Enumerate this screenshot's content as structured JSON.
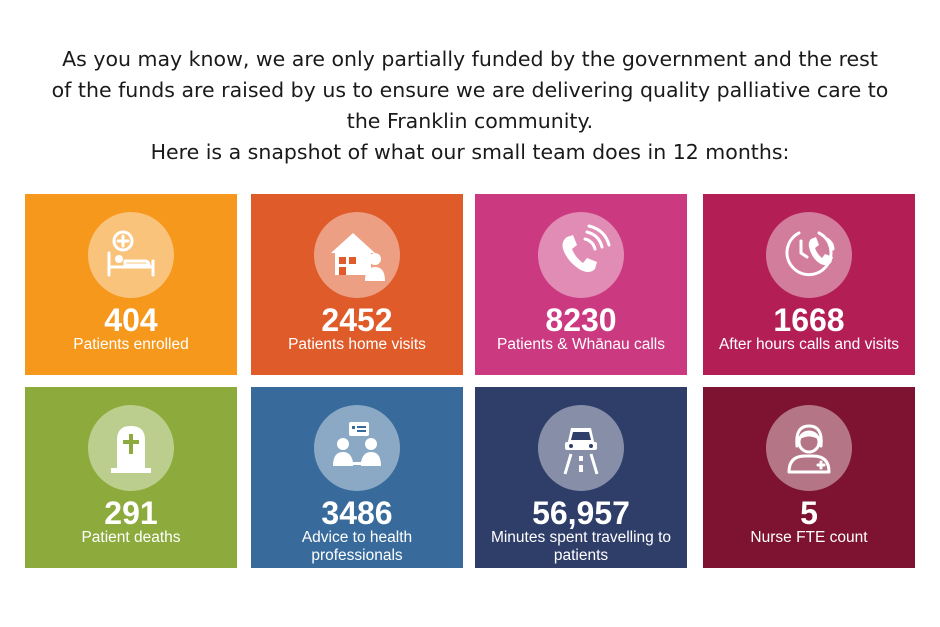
{
  "intro": {
    "line1": "As you may know, we are only partially funded by the government and the rest",
    "line2": "of the funds are raised by us to ensure we are delivering quality palliative care to",
    "line3": "the Franklin community.",
    "line4": "Here is a snapshot of what our small team does in 12 months:"
  },
  "tiles": [
    {
      "value": "404",
      "label": "Patients enrolled",
      "color": "#F6981C",
      "icon": "patient-bed-icon"
    },
    {
      "value": "2452",
      "label": "Patients home visits",
      "color": "#DF5B2A",
      "icon": "home-visit-icon"
    },
    {
      "value": "8230",
      "label": "Patients & Whānau calls",
      "color": "#CB3A80",
      "icon": "phone-calls-icon"
    },
    {
      "value": "1668",
      "label": "After hours calls and visits",
      "color": "#B31F55",
      "icon": "after-hours-phone-icon"
    },
    {
      "value": "291",
      "label": "Patient deaths",
      "color": "#8CAB3C",
      "icon": "headstone-icon"
    },
    {
      "value": "3486",
      "label": "Advice to health professionals",
      "color": "#386B9B",
      "icon": "consultation-icon"
    },
    {
      "value": "56,957",
      "label": "Minutes spent travelling to patients",
      "color": "#2F3D69",
      "icon": "car-road-icon"
    },
    {
      "value": "5",
      "label": "Nurse FTE count",
      "color": "#7E1331",
      "icon": "nurse-icon"
    }
  ]
}
